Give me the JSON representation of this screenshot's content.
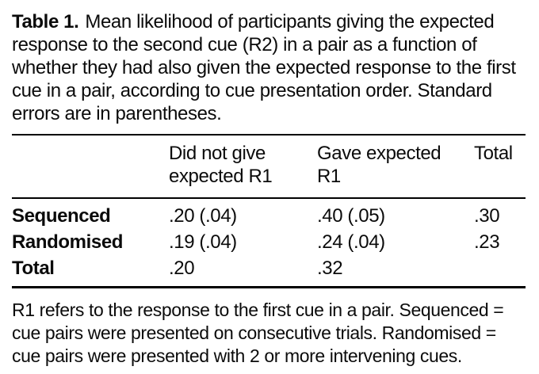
{
  "caption": {
    "label": "Table 1.",
    "text": "Mean likelihood of participants giving the expected response to the second cue (R2) in a pair as a function of whether they had also given the expected response to the first cue in a pair, according to cue presentation order. Standard errors are in parentheses."
  },
  "table": {
    "columns": [
      "",
      "Did not give expected R1",
      "Gave expected R1",
      "Total"
    ],
    "rows": [
      {
        "label": "Sequenced",
        "values": [
          ".20 (.04)",
          ".40 (.05)",
          ".30"
        ]
      },
      {
        "label": "Randomised",
        "values": [
          ".19 (.04)",
          ".24 (.04)",
          ".23"
        ]
      },
      {
        "label": "Total",
        "values": [
          ".20",
          ".32",
          ""
        ]
      }
    ]
  },
  "footnote": "R1 refers to the response to the first cue in a pair. Sequenced = cue pairs were presented on consecutive trials. Randomised = cue pairs were presented with 2 or more intervening cues.",
  "colors": {
    "text": "#0b0b0b",
    "rule": "#000000",
    "background": "#ffffff"
  }
}
